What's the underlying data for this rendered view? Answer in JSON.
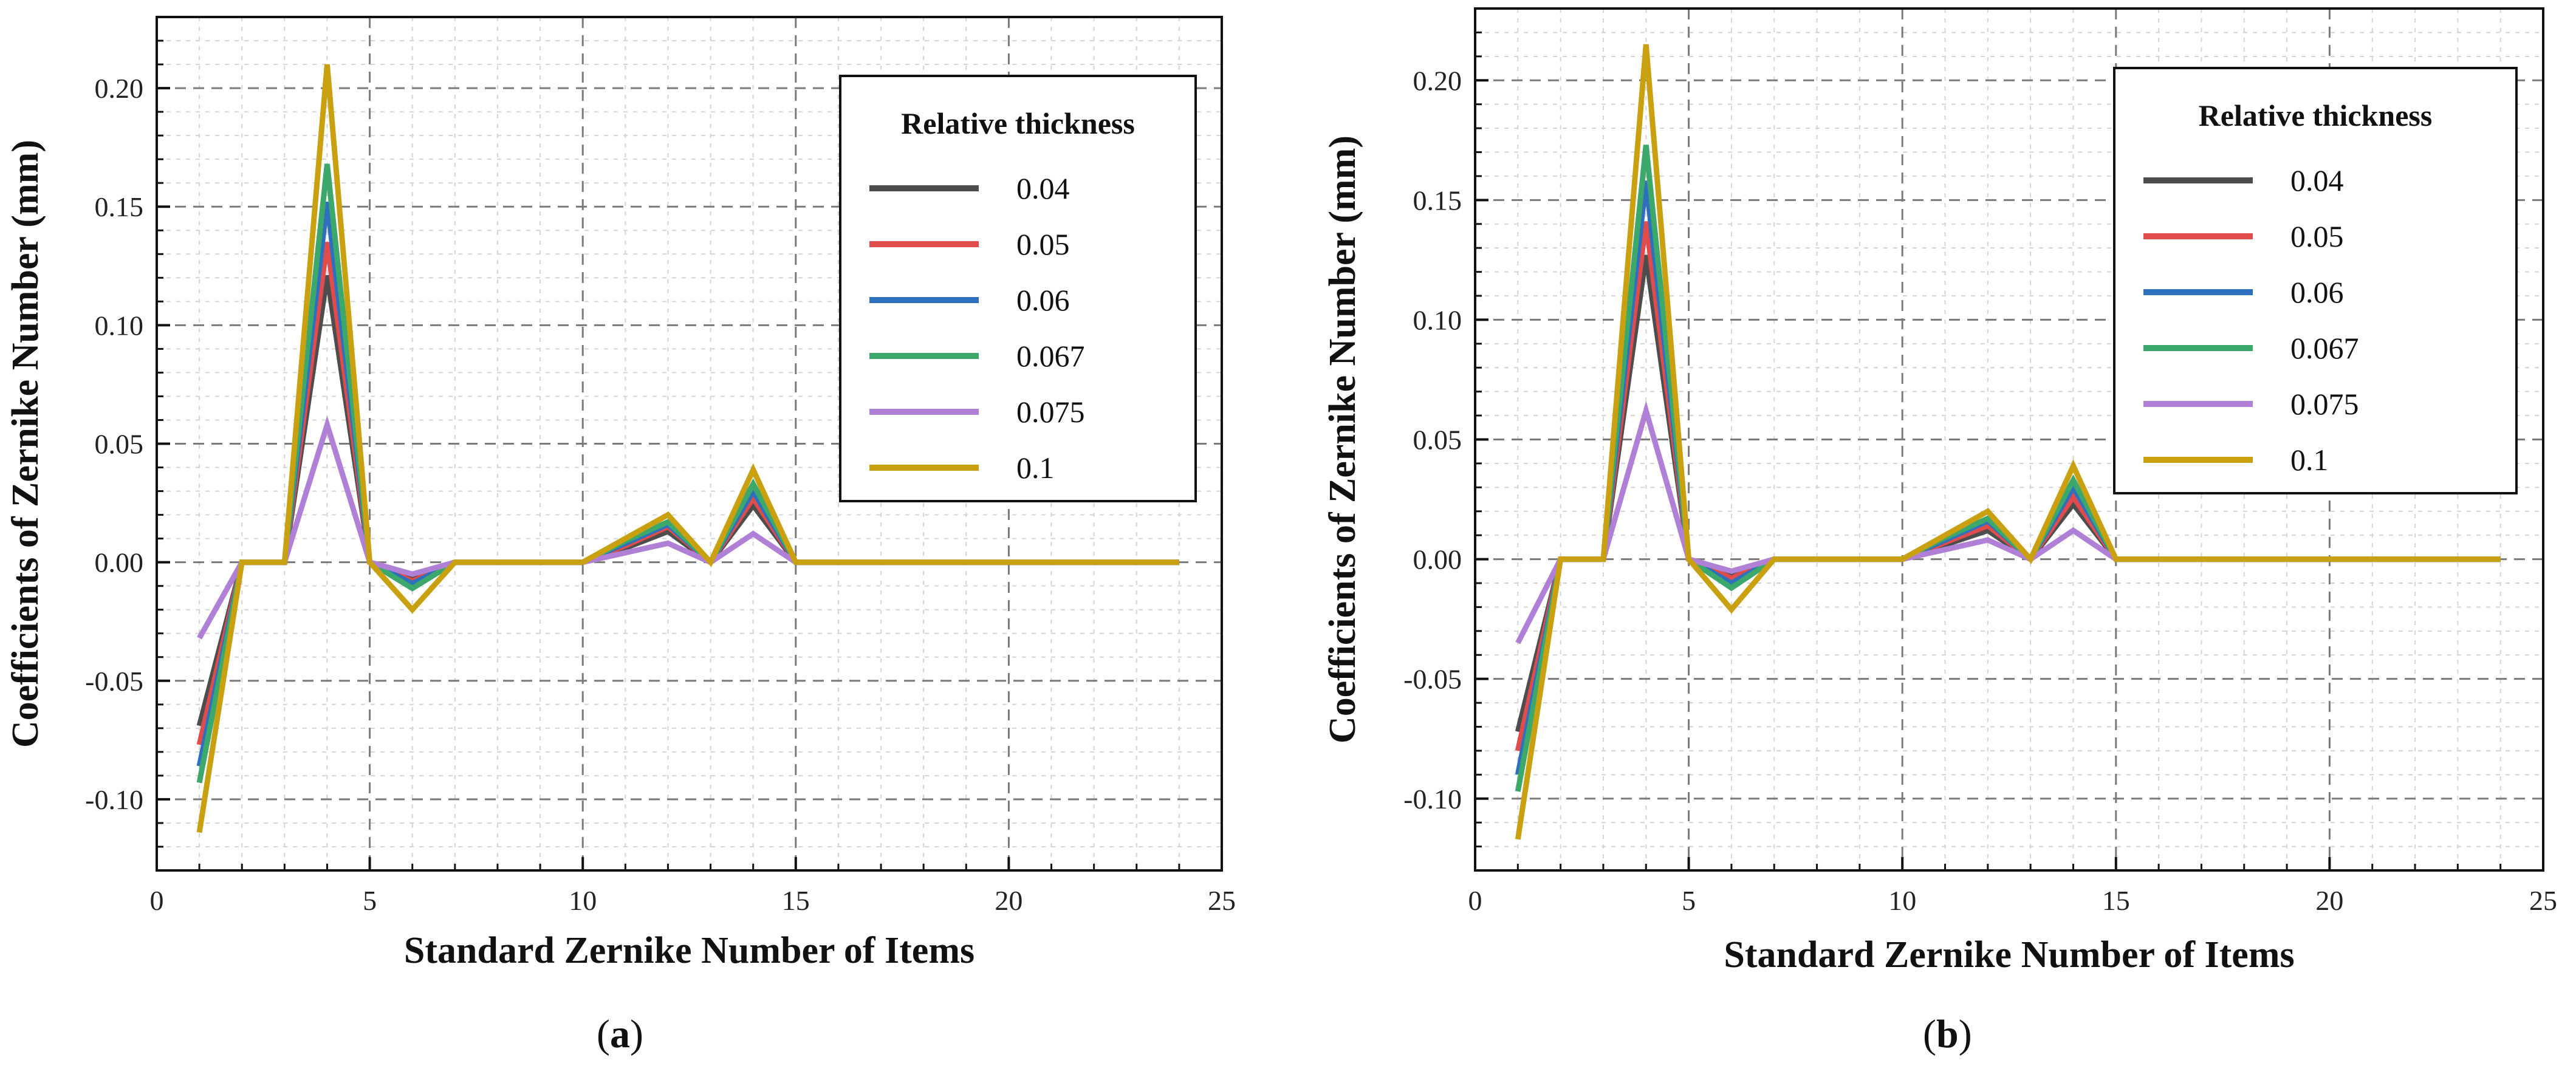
{
  "chart_data": [
    {
      "type": "line",
      "panel": "a",
      "xlabel": "Standard Zernike Number of Items",
      "ylabel": "Coefficients of Zernike Number (mm)",
      "xlim": [
        0,
        25
      ],
      "ylim": [
        -0.13,
        0.23
      ],
      "xticks": [
        0,
        5,
        10,
        15,
        20,
        25
      ],
      "yticks": [
        -0.1,
        -0.05,
        0.0,
        0.05,
        0.1,
        0.15,
        0.2
      ],
      "xtick_labels": [
        "0",
        "5",
        "10",
        "15",
        "20",
        "25"
      ],
      "ytick_labels": [
        "-0.10",
        "-0.05",
        "0.00",
        "0.05",
        "0.10",
        "0.15",
        "0.20"
      ],
      "grid": true,
      "legend_title": "Relative thickness",
      "legend_position": "top-right",
      "x": [
        1,
        2,
        3,
        4,
        5,
        6,
        7,
        8,
        9,
        10,
        11,
        12,
        13,
        14,
        15,
        16,
        17,
        18,
        19,
        20,
        21,
        22,
        23,
        24
      ],
      "series": [
        {
          "name": "0.04",
          "color": "#4d4d4d",
          "values": [
            -0.069,
            0,
            0,
            0.121,
            0,
            -0.006,
            0,
            0,
            0,
            0,
            0.006,
            0.013,
            0,
            0.024,
            0,
            0,
            0,
            0,
            0,
            0,
            0,
            0,
            0,
            0
          ]
        },
        {
          "name": "0.05",
          "color": "#e04c4c",
          "values": [
            -0.077,
            0,
            0,
            0.135,
            0,
            -0.008,
            0,
            0,
            0,
            0,
            0.007,
            0.015,
            0,
            0.027,
            0,
            0,
            0,
            0,
            0,
            0,
            0,
            0,
            0,
            0
          ]
        },
        {
          "name": "0.06",
          "color": "#2e6fbe",
          "values": [
            -0.086,
            0,
            0,
            0.152,
            0,
            -0.009,
            0,
            0,
            0,
            0,
            0.008,
            0.016,
            0,
            0.03,
            0,
            0,
            0,
            0,
            0,
            0,
            0,
            0,
            0,
            0
          ]
        },
        {
          "name": "0.067",
          "color": "#3da86c",
          "values": [
            -0.093,
            0,
            0,
            0.168,
            0,
            -0.011,
            0,
            0,
            0,
            0,
            0.009,
            0.017,
            0,
            0.033,
            0,
            0,
            0,
            0,
            0,
            0,
            0,
            0,
            0,
            0
          ]
        },
        {
          "name": "0.075",
          "color": "#b07fd6",
          "values": [
            -0.032,
            0,
            0,
            0.058,
            0,
            -0.005,
            0,
            0,
            0,
            0,
            0.004,
            0.008,
            0,
            0.012,
            0,
            0,
            0,
            0,
            0,
            0,
            0,
            0,
            0,
            0
          ]
        },
        {
          "name": "0.1",
          "color": "#c9a010",
          "values": [
            -0.114,
            0,
            0,
            0.21,
            0,
            -0.02,
            0,
            0,
            0,
            0,
            0.01,
            0.02,
            0,
            0.039,
            0,
            0,
            0,
            0,
            0,
            0,
            0,
            0,
            0,
            0
          ]
        }
      ]
    },
    {
      "type": "line",
      "panel": "b",
      "xlabel": "Standard Zernike Number of Items",
      "ylabel": "Coefficients of Zernike Number (mm)",
      "xlim": [
        0,
        25
      ],
      "ylim": [
        -0.13,
        0.23
      ],
      "xticks": [
        0,
        5,
        10,
        15,
        20,
        25
      ],
      "yticks": [
        -0.1,
        -0.05,
        0.0,
        0.05,
        0.1,
        0.15,
        0.2
      ],
      "xtick_labels": [
        "0",
        "5",
        "10",
        "15",
        "20",
        "25"
      ],
      "ytick_labels": [
        "-0.10",
        "-0.05",
        "0.00",
        "0.05",
        "0.10",
        "0.15",
        "0.20"
      ],
      "grid": true,
      "legend_title": "Relative thickness",
      "legend_position": "top-right",
      "x": [
        1,
        2,
        3,
        4,
        5,
        6,
        7,
        8,
        9,
        10,
        11,
        12,
        13,
        14,
        15,
        16,
        17,
        18,
        19,
        20,
        21,
        22,
        23,
        24
      ],
      "series": [
        {
          "name": "0.04",
          "color": "#4d4d4d",
          "values": [
            -0.072,
            0,
            0,
            0.127,
            0,
            -0.007,
            0,
            0,
            0,
            0,
            0.006,
            0.012,
            0,
            0.023,
            0,
            0,
            0,
            0,
            0,
            0,
            0,
            0,
            0,
            0
          ]
        },
        {
          "name": "0.05",
          "color": "#e04c4c",
          "values": [
            -0.08,
            0,
            0,
            0.141,
            0,
            -0.008,
            0,
            0,
            0,
            0,
            0.007,
            0.014,
            0,
            0.026,
            0,
            0,
            0,
            0,
            0,
            0,
            0,
            0,
            0,
            0
          ]
        },
        {
          "name": "0.06",
          "color": "#2e6fbe",
          "values": [
            -0.09,
            0,
            0,
            0.158,
            0,
            -0.01,
            0,
            0,
            0,
            0,
            0.008,
            0.016,
            0,
            0.03,
            0,
            0,
            0,
            0,
            0,
            0,
            0,
            0,
            0,
            0
          ]
        },
        {
          "name": "0.067",
          "color": "#3da86c",
          "values": [
            -0.097,
            0,
            0,
            0.173,
            0,
            -0.012,
            0,
            0,
            0,
            0,
            0.009,
            0.017,
            0,
            0.033,
            0,
            0,
            0,
            0,
            0,
            0,
            0,
            0,
            0,
            0
          ]
        },
        {
          "name": "0.075",
          "color": "#b07fd6",
          "values": [
            -0.035,
            0,
            0,
            0.062,
            0,
            -0.005,
            0,
            0,
            0,
            0,
            0.004,
            0.008,
            0,
            0.012,
            0,
            0,
            0,
            0,
            0,
            0,
            0,
            0,
            0,
            0
          ]
        },
        {
          "name": "0.1",
          "color": "#c9a010",
          "values": [
            -0.117,
            0,
            0,
            0.215,
            0,
            -0.021,
            0,
            0,
            0,
            0,
            0.01,
            0.02,
            0,
            0.039,
            0,
            0,
            0,
            0,
            0,
            0,
            0,
            0,
            0,
            0
          ]
        }
      ]
    }
  ],
  "captions": [
    "a",
    "b"
  ]
}
